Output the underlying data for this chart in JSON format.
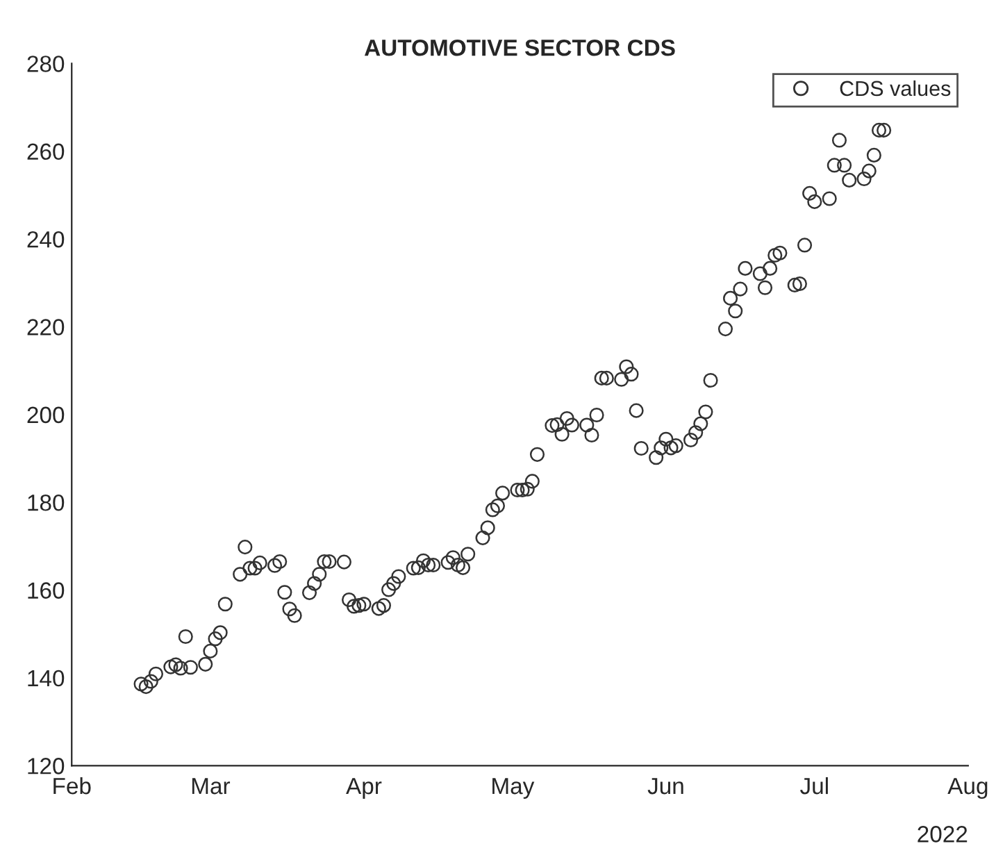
{
  "chart_data": {
    "type": "scatter",
    "title": "AUTOMOTIVE SECTOR CDS",
    "x": [
      "2022-02-15",
      "2022-02-16",
      "2022-02-17",
      "2022-02-18",
      "2022-02-21",
      "2022-02-22",
      "2022-02-23",
      "2022-02-24",
      "2022-02-25",
      "2022-02-28",
      "2022-03-01",
      "2022-03-02",
      "2022-03-03",
      "2022-03-04",
      "2022-03-07",
      "2022-03-08",
      "2022-03-09",
      "2022-03-10",
      "2022-03-11",
      "2022-03-14",
      "2022-03-15",
      "2022-03-16",
      "2022-03-17",
      "2022-03-18",
      "2022-03-21",
      "2022-03-22",
      "2022-03-23",
      "2022-03-24",
      "2022-03-25",
      "2022-03-28",
      "2022-03-29",
      "2022-03-30",
      "2022-03-31",
      "2022-04-01",
      "2022-04-04",
      "2022-04-05",
      "2022-04-06",
      "2022-04-07",
      "2022-04-08",
      "2022-04-11",
      "2022-04-12",
      "2022-04-13",
      "2022-04-14",
      "2022-04-15",
      "2022-04-18",
      "2022-04-19",
      "2022-04-20",
      "2022-04-21",
      "2022-04-22",
      "2022-04-25",
      "2022-04-26",
      "2022-04-27",
      "2022-04-28",
      "2022-04-29",
      "2022-05-02",
      "2022-05-03",
      "2022-05-04",
      "2022-05-05",
      "2022-05-06",
      "2022-05-09",
      "2022-05-10",
      "2022-05-11",
      "2022-05-12",
      "2022-05-13",
      "2022-05-16",
      "2022-05-17",
      "2022-05-18",
      "2022-05-19",
      "2022-05-20",
      "2022-05-23",
      "2022-05-24",
      "2022-05-25",
      "2022-05-26",
      "2022-05-27",
      "2022-05-30",
      "2022-05-31",
      "2022-06-01",
      "2022-06-02",
      "2022-06-03",
      "2022-06-06",
      "2022-06-07",
      "2022-06-08",
      "2022-06-09",
      "2022-06-10",
      "2022-06-13",
      "2022-06-14",
      "2022-06-15",
      "2022-06-16",
      "2022-06-17",
      "2022-06-20",
      "2022-06-21",
      "2022-06-22",
      "2022-06-23",
      "2022-06-24",
      "2022-06-27",
      "2022-06-28",
      "2022-06-29",
      "2022-06-30",
      "2022-07-01",
      "2022-07-04",
      "2022-07-05",
      "2022-07-06",
      "2022-07-07",
      "2022-07-08",
      "2022-07-11",
      "2022-07-12",
      "2022-07-13",
      "2022-07-14",
      "2022-07-15"
    ],
    "series": [
      {
        "name": "CDS values",
        "color": "#333333",
        "values": [
          138.6,
          138.0,
          139.2,
          140.9,
          142.5,
          143.0,
          142.2,
          149.4,
          142.4,
          143.1,
          146.1,
          148.9,
          150.3,
          156.8,
          163.6,
          169.8,
          165.0,
          165.0,
          166.2,
          165.6,
          166.5,
          159.5,
          155.7,
          154.2,
          159.4,
          161.5,
          163.6,
          166.5,
          166.5,
          166.4,
          157.8,
          156.3,
          156.5,
          156.8,
          155.8,
          156.5,
          160.1,
          161.5,
          163.1,
          165.0,
          165.1,
          166.7,
          165.7,
          165.7,
          166.3,
          167.4,
          165.7,
          165.1,
          168.2,
          171.9,
          174.2,
          178.3,
          179.2,
          182.1,
          182.8,
          182.8,
          183.0,
          184.8,
          190.9,
          197.5,
          197.7,
          195.5,
          199.1,
          197.6,
          197.6,
          195.3,
          199.9,
          208.3,
          208.3,
          208.0,
          210.9,
          209.2,
          200.9,
          192.3,
          190.2,
          192.4,
          194.4,
          192.4,
          192.9,
          194.2,
          195.9,
          197.9,
          200.6,
          207.8,
          219.5,
          226.5,
          223.6,
          228.6,
          233.3,
          232.1,
          228.9,
          233.3,
          236.3,
          236.8,
          229.5,
          229.8,
          238.6,
          250.4,
          248.5,
          249.2,
          256.8,
          262.5,
          256.8,
          253.4,
          253.7,
          255.5,
          259.1,
          264.8,
          264.8
        ]
      }
    ],
    "xlim": [
      "2022-02-01",
      "2022-08-01"
    ],
    "xticks": [
      {
        "value": "2022-02-01",
        "label": "Feb"
      },
      {
        "value": "2022-03-01",
        "label": "Mar"
      },
      {
        "value": "2022-04-01",
        "label": "Apr"
      },
      {
        "value": "2022-05-01",
        "label": "May"
      },
      {
        "value": "2022-06-01",
        "label": "Jun"
      },
      {
        "value": "2022-07-01",
        "label": "Jul"
      },
      {
        "value": "2022-08-01",
        "label": "Aug"
      }
    ],
    "ylim": [
      120,
      280
    ],
    "yticks": [
      120,
      140,
      160,
      180,
      200,
      220,
      240,
      260,
      280
    ],
    "annotations": [
      "2022"
    ],
    "marker": "circle",
    "legend": "top right",
    "grid": false
  }
}
